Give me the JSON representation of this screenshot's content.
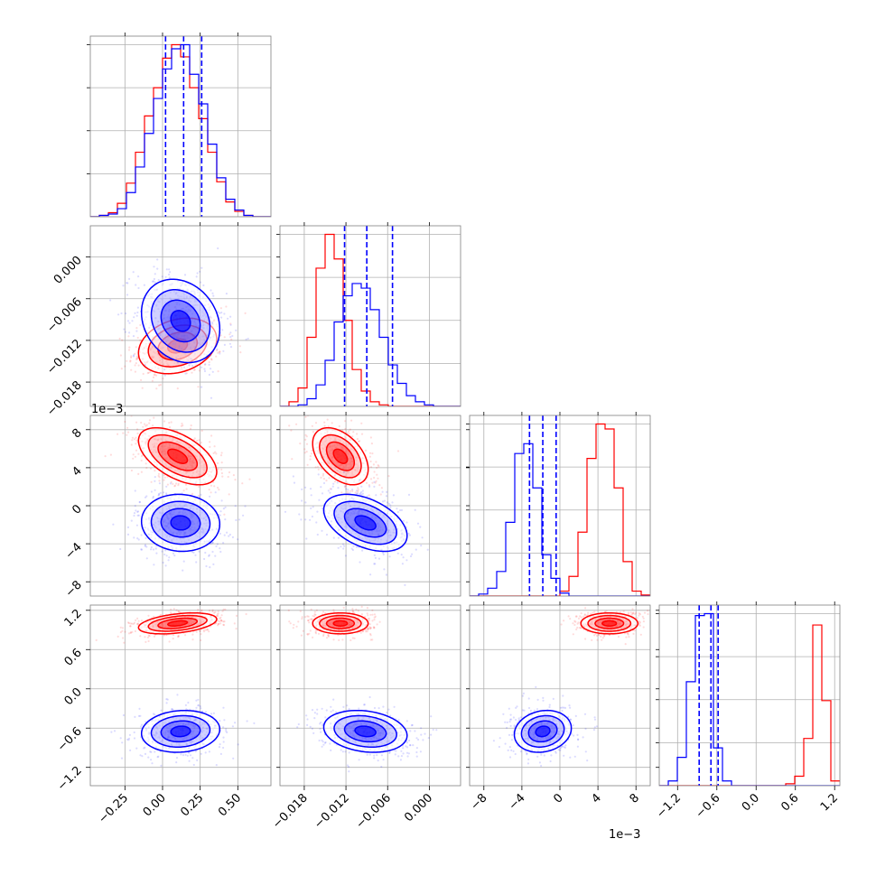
{
  "chart_data": {
    "type": "corner",
    "grid": true,
    "scale_note_row3": "1e−3",
    "scale_note_col3": "1e−3",
    "colors": {
      "series_a": "#ff0000",
      "series_b": "#0000ff"
    },
    "params": [
      {
        "range": [
          -0.48,
          0.72
        ],
        "ticks": [
          -0.25,
          0.0,
          0.25,
          0.5
        ],
        "tick_labels": [
          "−0.25",
          "0.00",
          "0.25",
          "0.50"
        ],
        "quantiles_blue": [
          0.02,
          0.14,
          0.26
        ],
        "hist_edges_start": -0.48,
        "hist_bin_width": 0.06,
        "hist_red": [
          0,
          1,
          3,
          10,
          25,
          48,
          75,
          96,
          118,
          128,
          119,
          96,
          73,
          48,
          26,
          11,
          4,
          1,
          0,
          0
        ],
        "hist_blue": [
          0,
          1,
          2,
          6,
          18,
          37,
          62,
          88,
          110,
          125,
          128,
          106,
          84,
          54,
          29,
          13,
          5,
          1,
          0,
          0
        ]
      },
      {
        "range": [
          -0.0215,
          0.0045
        ],
        "ticks": [
          -0.018,
          -0.012,
          -0.006,
          0.0
        ],
        "tick_labels": [
          "−0.018",
          "−0.012",
          "−0.006",
          "0.000"
        ],
        "quantiles_blue": [
          -0.0122,
          -0.009,
          -0.0053
        ],
        "hist_edges_start": -0.0215,
        "hist_bin_width": 0.0013,
        "hist_red": [
          0,
          3,
          12,
          45,
          90,
          112,
          96,
          56,
          24,
          10,
          3,
          1,
          0,
          0,
          0,
          0,
          0,
          0,
          0,
          0
        ],
        "hist_blue": [
          0,
          0,
          1,
          5,
          14,
          30,
          55,
          72,
          80,
          77,
          63,
          45,
          27,
          15,
          7,
          3,
          1,
          0,
          0,
          0
        ]
      },
      {
        "range": [
          -9.5,
          9.5
        ],
        "ticks": [
          -8,
          -4,
          0,
          4,
          8
        ],
        "tick_labels": [
          "−8",
          "−4",
          "0",
          "4",
          "8"
        ],
        "quantiles_blue": [
          -3.2,
          -1.8,
          -0.4
        ],
        "hist_edges_start": -9.5,
        "hist_bin_width": 0.95,
        "hist_red": [
          0,
          0,
          0,
          0,
          0,
          0,
          0,
          0,
          0,
          0,
          5,
          20,
          65,
          140,
          175,
          170,
          110,
          35,
          5,
          1
        ],
        "hist_blue": [
          0,
          2,
          8,
          25,
          75,
          145,
          155,
          110,
          42,
          18,
          3,
          0,
          0,
          0,
          0,
          0,
          0,
          0,
          0,
          0
        ]
      },
      {
        "range": [
          -1.48,
          1.28
        ],
        "ticks": [
          -1.2,
          -0.6,
          0.0,
          0.6,
          1.2
        ],
        "tick_labels": [
          "−1.2",
          "−0.6",
          "0.0",
          "0.6",
          "1.2"
        ],
        "quantiles_blue": [
          -0.87,
          -0.69,
          -0.58
        ],
        "hist_edges_start": -1.48,
        "hist_bin_width": 0.138,
        "hist_red": [
          0,
          0,
          0,
          0,
          0,
          0,
          0,
          0,
          0,
          0,
          0,
          0,
          0,
          0,
          2,
          10,
          50,
          170,
          90,
          5
        ],
        "hist_blue": [
          0,
          5,
          30,
          110,
          180,
          182,
          40,
          5,
          0,
          0,
          0,
          0,
          0,
          0,
          0,
          0,
          0,
          0,
          0,
          0
        ]
      }
    ],
    "clusters": [
      {
        "color": "red",
        "mean": [
          0.1,
          -0.0128,
          5.2,
          1.0
        ],
        "sd": [
          0.13,
          0.002,
          1.5,
          0.08
        ],
        "corr": [
          [
            1,
            0.25,
            -0.55,
            0.4
          ],
          [
            0.25,
            1,
            -0.45,
            0.0
          ],
          [
            -0.55,
            -0.45,
            1,
            0.0
          ],
          [
            0.4,
            0.0,
            0.0,
            1
          ]
        ]
      },
      {
        "color": "blue",
        "mean": [
          0.12,
          -0.0092,
          -1.8,
          -0.65
        ],
        "sd": [
          0.13,
          0.003,
          1.5,
          0.16
        ],
        "corr": [
          [
            1,
            -0.2,
            -0.05,
            0.1
          ],
          [
            -0.2,
            1,
            -0.45,
            -0.2
          ],
          [
            -0.05,
            -0.45,
            1,
            0.15
          ],
          [
            0.1,
            -0.2,
            0.15,
            1
          ]
        ]
      }
    ]
  }
}
